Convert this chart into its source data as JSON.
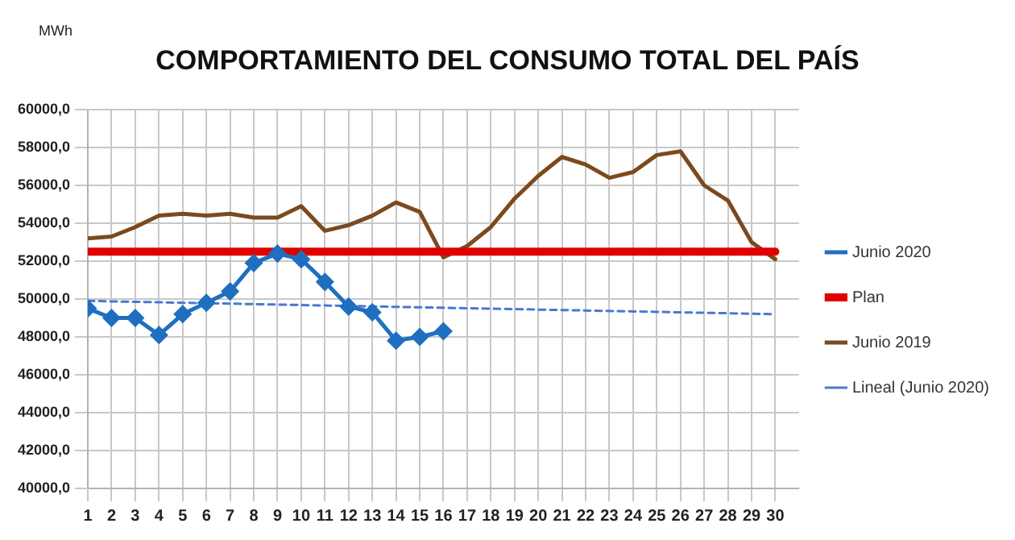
{
  "chart_data": {
    "type": "line",
    "title": "COMPORTAMIENTO DEL CONSUMO TOTAL DEL PAÍS",
    "ylabel": "MWh",
    "x": [
      1,
      2,
      3,
      4,
      5,
      6,
      7,
      8,
      9,
      10,
      11,
      12,
      13,
      14,
      15,
      16,
      17,
      18,
      19,
      20,
      21,
      22,
      23,
      24,
      25,
      26,
      27,
      28,
      29,
      30
    ],
    "series": [
      {
        "name": "Junio 2020",
        "color": "#1f6fc0",
        "marker": "diamond",
        "x": [
          1,
          2,
          3,
          4,
          5,
          6,
          7,
          8,
          9,
          10,
          11,
          12,
          13,
          14,
          15,
          16
        ],
        "values": [
          49500,
          49000,
          49000,
          48100,
          49200,
          49800,
          50400,
          51900,
          52400,
          52100,
          50900,
          49600,
          49300,
          47800,
          48000,
          48300
        ]
      },
      {
        "name": "Plan",
        "color": "#e00000",
        "x": [
          1,
          30
        ],
        "values": [
          52500,
          52500
        ]
      },
      {
        "name": "Junio 2019",
        "color": "#7b4a1e",
        "values": [
          53200,
          53300,
          53800,
          54400,
          54500,
          54400,
          54500,
          54300,
          54300,
          54900,
          53600,
          53900,
          54400,
          55100,
          54600,
          52200,
          52800,
          53800,
          55300,
          56500,
          57500,
          57100,
          56400,
          56700,
          57600,
          57800,
          56000,
          55200,
          53000,
          52100
        ]
      },
      {
        "name": "Lineal (Junio 2020)",
        "color": "#4a78d0",
        "line_style": "dashed",
        "x": [
          1,
          30
        ],
        "values": [
          49900,
          49200
        ]
      }
    ],
    "xlim": [
      1,
      31
    ],
    "xticks": [
      1,
      2,
      3,
      4,
      5,
      6,
      7,
      8,
      9,
      10,
      11,
      12,
      13,
      14,
      15,
      16,
      17,
      18,
      19,
      20,
      21,
      22,
      23,
      24,
      25,
      26,
      27,
      28,
      29,
      30
    ],
    "ylim": [
      40000,
      60000
    ],
    "yticks": [
      {
        "value": 40000,
        "label": "40000,0"
      },
      {
        "value": 42000,
        "label": "42000,0"
      },
      {
        "value": 44000,
        "label": "44000,0"
      },
      {
        "value": 46000,
        "label": "46000,0"
      },
      {
        "value": 48000,
        "label": "48000,0"
      },
      {
        "value": 50000,
        "label": "50000,0"
      },
      {
        "value": 52000,
        "label": "52000,0"
      },
      {
        "value": 54000,
        "label": "54000,0"
      },
      {
        "value": 56000,
        "label": "56000,0"
      },
      {
        "value": 58000,
        "label": "58000,0"
      },
      {
        "value": 60000,
        "label": "60000,0"
      }
    ],
    "grid": true,
    "legend": "right"
  }
}
